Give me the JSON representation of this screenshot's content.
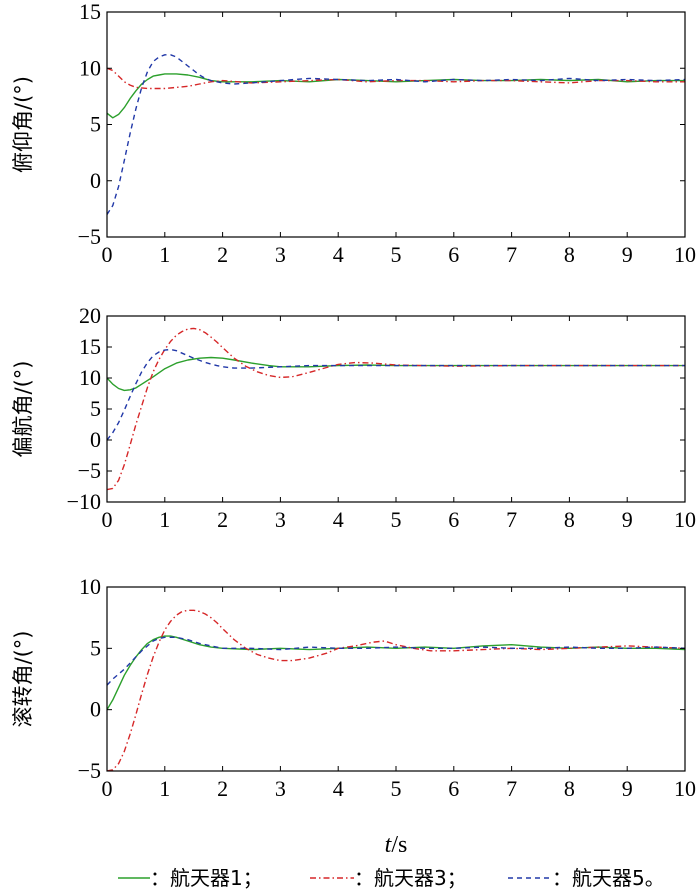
{
  "chart_data": [
    {
      "type": "line",
      "ylabel": "俯仰角/(°)",
      "xlim": [
        0,
        10
      ],
      "ylim": [
        -5,
        15
      ],
      "xticks": [
        "0",
        "1",
        "2",
        "3",
        "4",
        "5",
        "6",
        "7",
        "8",
        "9",
        "10"
      ],
      "yticks": [
        "−5",
        "0",
        "5",
        "10",
        "15"
      ],
      "yticks_values": [
        -5,
        0,
        5,
        10,
        15
      ],
      "series": [
        {
          "x": [
            0,
            0.1,
            0.2,
            0.3,
            0.4,
            0.5,
            0.6,
            0.7,
            0.8,
            0.9,
            1.0,
            1.2,
            1.4,
            1.6,
            1.8,
            2.0,
            2.5,
            3.0,
            3.5,
            4.0,
            4.5,
            5.0,
            5.5,
            6.0,
            6.5,
            7.0,
            7.5,
            8.0,
            8.5,
            9.0,
            9.5,
            10.0
          ],
          "y": [
            6.0,
            5.6,
            5.9,
            6.5,
            7.3,
            8.0,
            8.6,
            9.0,
            9.3,
            9.4,
            9.5,
            9.5,
            9.4,
            9.2,
            8.9,
            8.8,
            8.8,
            8.9,
            8.8,
            9.0,
            8.9,
            8.8,
            8.9,
            9.0,
            8.9,
            8.9,
            9.0,
            8.9,
            9.0,
            8.8,
            8.9,
            8.9
          ],
          "color": "#2ca02c",
          "dash": "solid"
        },
        {
          "x": [
            0,
            0.1,
            0.2,
            0.3,
            0.4,
            0.5,
            0.6,
            0.7,
            0.8,
            1.0,
            1.2,
            1.4,
            1.6,
            1.8,
            2.0,
            2.5,
            3.0,
            3.5,
            4.0,
            4.5,
            5.0,
            5.5,
            6.0,
            6.5,
            7.0,
            7.5,
            8.0,
            8.5,
            9.0,
            9.5,
            10.0
          ],
          "y": [
            10.0,
            9.8,
            9.3,
            8.8,
            8.5,
            8.3,
            8.25,
            8.2,
            8.2,
            8.2,
            8.3,
            8.4,
            8.6,
            8.8,
            8.9,
            8.7,
            8.8,
            8.9,
            9.0,
            8.8,
            8.9,
            8.9,
            8.8,
            8.9,
            8.9,
            8.8,
            8.7,
            8.9,
            8.9,
            8.8,
            8.8
          ],
          "color": "#d62728",
          "dash": "dashdot"
        },
        {
          "x": [
            0,
            0.1,
            0.2,
            0.3,
            0.4,
            0.5,
            0.6,
            0.7,
            0.8,
            0.9,
            1.0,
            1.1,
            1.2,
            1.3,
            1.4,
            1.5,
            1.6,
            1.7,
            1.8,
            2.0,
            2.2,
            2.5,
            3.0,
            3.5,
            4.0,
            4.5,
            5.0,
            5.5,
            6.0,
            6.5,
            7.0,
            7.5,
            8.0,
            8.5,
            9.0,
            9.5,
            10.0
          ],
          "y": [
            -3.0,
            -2.2,
            -0.5,
            1.8,
            4.2,
            6.4,
            8.3,
            9.7,
            10.6,
            11.0,
            11.2,
            11.2,
            11.0,
            10.6,
            10.2,
            9.8,
            9.4,
            9.1,
            8.9,
            8.7,
            8.6,
            8.7,
            8.9,
            9.1,
            9.0,
            8.9,
            9.0,
            8.8,
            9.0,
            8.9,
            9.0,
            8.9,
            9.1,
            8.9,
            9.0,
            8.9,
            9.0
          ],
          "color": "#2138a8",
          "dash": "dashed"
        }
      ]
    },
    {
      "type": "line",
      "ylabel": "偏航角/(°)",
      "xlim": [
        0,
        10
      ],
      "ylim": [
        -10,
        20
      ],
      "xticks": [
        "0",
        "1",
        "2",
        "3",
        "4",
        "5",
        "6",
        "7",
        "8",
        "9",
        "10"
      ],
      "yticks": [
        "−10",
        "−5",
        "0",
        "5",
        "10",
        "15",
        "20"
      ],
      "yticks_values": [
        -10,
        -5,
        0,
        5,
        10,
        15,
        20
      ],
      "series": [
        {
          "x": [
            0,
            0.1,
            0.2,
            0.3,
            0.4,
            0.5,
            0.6,
            0.8,
            1.0,
            1.2,
            1.4,
            1.6,
            1.8,
            2.0,
            2.2,
            2.5,
            2.8,
            3.0,
            3.5,
            4.0,
            4.5,
            5.0,
            6.0,
            7.0,
            8.0,
            9.0,
            10.0
          ],
          "y": [
            10.0,
            9.0,
            8.3,
            8.0,
            8.1,
            8.4,
            9.0,
            10.2,
            11.5,
            12.4,
            12.9,
            13.2,
            13.3,
            13.2,
            12.9,
            12.4,
            12.0,
            11.8,
            11.8,
            12.0,
            12.1,
            12.0,
            12.0,
            12.0,
            12.0,
            12.0,
            12.0
          ],
          "color": "#2ca02c",
          "dash": "solid"
        },
        {
          "x": [
            0,
            0.1,
            0.2,
            0.3,
            0.4,
            0.5,
            0.6,
            0.7,
            0.8,
            0.9,
            1.0,
            1.1,
            1.2,
            1.3,
            1.4,
            1.5,
            1.6,
            1.7,
            1.8,
            1.9,
            2.0,
            2.2,
            2.4,
            2.6,
            2.8,
            3.0,
            3.2,
            3.5,
            3.8,
            4.0,
            4.3,
            4.6,
            5.0,
            5.5,
            6.0,
            7.0,
            8.0,
            9.0,
            10.0
          ],
          "y": [
            -8.0,
            -7.8,
            -6.5,
            -4.0,
            -0.8,
            2.5,
            5.5,
            8.5,
            11.0,
            13.0,
            14.6,
            15.9,
            16.9,
            17.5,
            17.9,
            18.0,
            17.8,
            17.3,
            16.6,
            15.8,
            14.9,
            13.2,
            11.9,
            11.0,
            10.4,
            10.1,
            10.2,
            10.9,
            11.7,
            12.2,
            12.5,
            12.4,
            12.1,
            12.0,
            11.9,
            12.0,
            12.0,
            12.0,
            12.0
          ],
          "color": "#d62728",
          "dash": "dashdot"
        },
        {
          "x": [
            0,
            0.1,
            0.2,
            0.3,
            0.4,
            0.5,
            0.6,
            0.7,
            0.8,
            0.9,
            1.0,
            1.1,
            1.2,
            1.3,
            1.4,
            1.5,
            1.7,
            1.9,
            2.0,
            2.2,
            2.5,
            3.0,
            3.5,
            4.0,
            5.0,
            6.0,
            7.0,
            8.0,
            9.0,
            10.0
          ],
          "y": [
            0.0,
            1.2,
            2.8,
            4.8,
            7.0,
            9.1,
            11.0,
            12.5,
            13.6,
            14.2,
            14.5,
            14.6,
            14.4,
            14.0,
            13.6,
            13.2,
            12.5,
            12.0,
            11.8,
            11.6,
            11.6,
            11.8,
            12.0,
            12.0,
            12.0,
            12.0,
            12.0,
            12.0,
            12.0,
            12.0
          ],
          "color": "#2138a8",
          "dash": "dashed"
        }
      ]
    },
    {
      "type": "line",
      "ylabel": "滚转角/(°)",
      "xlabel_italic": "t",
      "xlabel_rest": "/s",
      "xlim": [
        0,
        10
      ],
      "ylim": [
        -5,
        10
      ],
      "xticks": [
        "0",
        "1",
        "2",
        "3",
        "4",
        "5",
        "6",
        "7",
        "8",
        "9",
        "10"
      ],
      "yticks": [
        "−5",
        "0",
        "5",
        "10"
      ],
      "yticks_values": [
        -5,
        0,
        5,
        10
      ],
      "series": [
        {
          "x": [
            0,
            0.1,
            0.2,
            0.3,
            0.4,
            0.5,
            0.6,
            0.7,
            0.8,
            0.9,
            1.0,
            1.1,
            1.2,
            1.4,
            1.6,
            1.8,
            2.0,
            2.5,
            3.0,
            3.5,
            4.0,
            4.5,
            5.0,
            5.5,
            6.0,
            6.5,
            7.0,
            7.5,
            8.0,
            8.5,
            9.0,
            9.5,
            10.0
          ],
          "y": [
            0.0,
            0.8,
            1.8,
            2.8,
            3.6,
            4.3,
            4.9,
            5.4,
            5.7,
            5.9,
            6.0,
            6.0,
            5.9,
            5.6,
            5.3,
            5.1,
            5.0,
            4.9,
            5.0,
            4.9,
            5.0,
            5.1,
            5.0,
            5.1,
            5.0,
            5.2,
            5.3,
            5.1,
            5.0,
            5.1,
            5.0,
            5.0,
            4.9
          ],
          "color": "#2ca02c",
          "dash": "solid"
        },
        {
          "x": [
            0,
            0.1,
            0.2,
            0.3,
            0.4,
            0.5,
            0.6,
            0.7,
            0.8,
            0.9,
            1.0,
            1.1,
            1.2,
            1.3,
            1.4,
            1.5,
            1.6,
            1.7,
            1.8,
            1.9,
            2.0,
            2.2,
            2.4,
            2.6,
            2.8,
            3.0,
            3.2,
            3.5,
            3.8,
            4.0,
            4.3,
            4.6,
            4.8,
            5.0,
            5.3,
            5.6,
            6.0,
            6.5,
            7.0,
            7.5,
            8.0,
            8.5,
            9.0,
            9.5,
            10.0
          ],
          "y": [
            -5.0,
            -4.9,
            -4.4,
            -3.4,
            -2.0,
            -0.4,
            1.3,
            2.9,
            4.3,
            5.5,
            6.5,
            7.2,
            7.7,
            8.0,
            8.1,
            8.1,
            8.0,
            7.8,
            7.5,
            7.1,
            6.6,
            5.7,
            5.0,
            4.5,
            4.2,
            4.0,
            4.0,
            4.2,
            4.6,
            5.0,
            5.2,
            5.5,
            5.6,
            5.3,
            5.0,
            4.8,
            4.8,
            4.9,
            5.0,
            4.9,
            5.0,
            5.1,
            5.2,
            5.1,
            5.0
          ],
          "color": "#d62728",
          "dash": "dashdot"
        },
        {
          "x": [
            0,
            0.1,
            0.2,
            0.3,
            0.4,
            0.5,
            0.6,
            0.7,
            0.8,
            0.9,
            1.0,
            1.1,
            1.2,
            1.4,
            1.6,
            1.8,
            2.0,
            2.5,
            3.0,
            3.5,
            4.0,
            4.5,
            5.0,
            5.5,
            6.0,
            6.5,
            7.0,
            7.5,
            8.0,
            8.5,
            9.0,
            9.5,
            10.0
          ],
          "y": [
            2.0,
            2.5,
            2.9,
            3.3,
            3.8,
            4.3,
            4.8,
            5.2,
            5.6,
            5.8,
            5.9,
            5.9,
            5.9,
            5.7,
            5.4,
            5.2,
            5.0,
            5.0,
            4.9,
            5.1,
            5.0,
            5.0,
            5.1,
            5.0,
            5.0,
            5.1,
            5.0,
            5.0,
            5.1,
            5.0,
            5.0,
            5.1,
            5.0
          ],
          "color": "#2138a8",
          "dash": "dashed"
        }
      ]
    }
  ],
  "legend": [
    {
      "label": "：航天器1；",
      "color": "#2ca02c",
      "dash": "solid"
    },
    {
      "label": "：航天器3；",
      "color": "#d62728",
      "dash": "dashdot"
    },
    {
      "label": "：航天器5。",
      "color": "#2138a8",
      "dash": "dashed"
    }
  ]
}
